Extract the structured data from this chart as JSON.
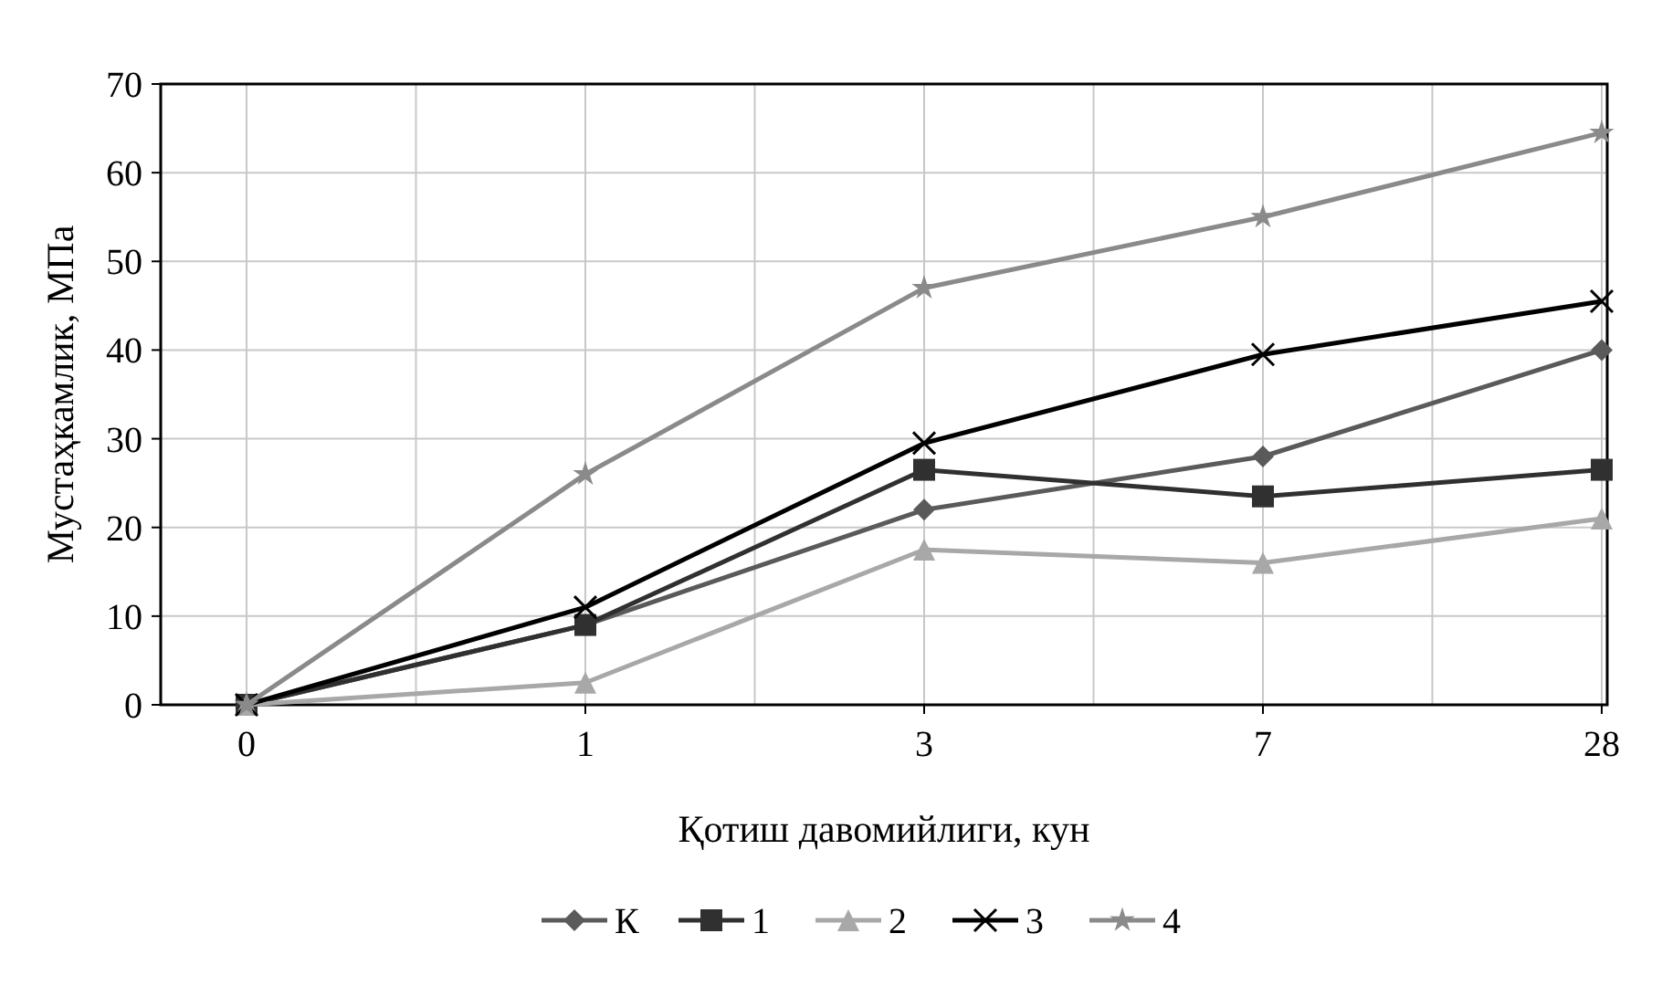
{
  "chart_data": {
    "type": "line",
    "xlabel": "Қотиш давомийлиги, кун",
    "ylabel": "Мустаҳкамлик, МПа",
    "categories": [
      "0",
      "1",
      "3",
      "7",
      "28"
    ],
    "ylim": [
      0,
      70
    ],
    "yticks": [
      0,
      10,
      20,
      30,
      40,
      50,
      60,
      70
    ],
    "grid": true,
    "legend": "bottom",
    "series": [
      {
        "name": "К",
        "color": "#5a5a5a",
        "marker": "diamond",
        "values": [
          0,
          9,
          22,
          28,
          40
        ]
      },
      {
        "name": "1",
        "color": "#303030",
        "marker": "square",
        "values": [
          0,
          9,
          26.5,
          23.5,
          26.5
        ]
      },
      {
        "name": "2",
        "color": "#a8a8a8",
        "marker": "triangle",
        "values": [
          0,
          2.5,
          17.5,
          16,
          21
        ]
      },
      {
        "name": "3",
        "color": "#000000",
        "marker": "cross",
        "values": [
          0,
          11,
          29.5,
          39.5,
          45.5
        ]
      },
      {
        "name": "4",
        "color": "#8a8a8a",
        "marker": "star",
        "values": [
          0,
          26,
          47,
          55,
          64.5
        ]
      }
    ]
  }
}
